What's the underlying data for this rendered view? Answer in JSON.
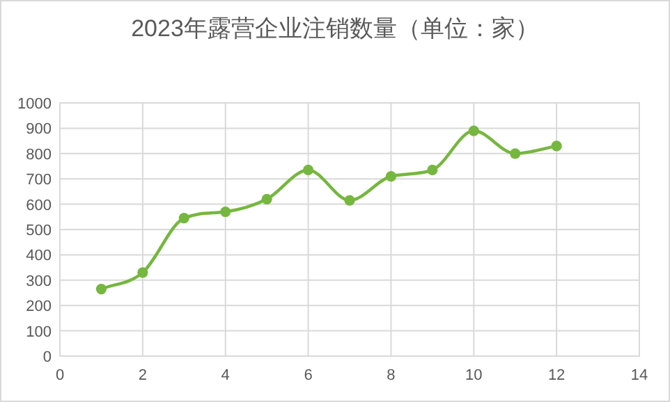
{
  "chart_data": {
    "type": "line",
    "title": "2023年露营企业注销数量（单位：家）",
    "x": [
      1,
      2,
      3,
      4,
      5,
      6,
      7,
      8,
      9,
      10,
      11,
      12
    ],
    "series": [
      {
        "color": "#76b73f",
        "values": [
          265,
          330,
          545,
          570,
          620,
          735,
          615,
          710,
          735,
          890,
          800,
          830
        ]
      }
    ],
    "xlim": [
      0,
      14
    ],
    "xticks": [
      0,
      2,
      4,
      6,
      8,
      10,
      12,
      14
    ],
    "ylim": [
      0,
      1000
    ],
    "yticks": [
      0,
      100,
      200,
      300,
      400,
      500,
      600,
      700,
      800,
      900,
      1000
    ],
    "grid": true,
    "marker": "circle",
    "line_style": "solid"
  }
}
